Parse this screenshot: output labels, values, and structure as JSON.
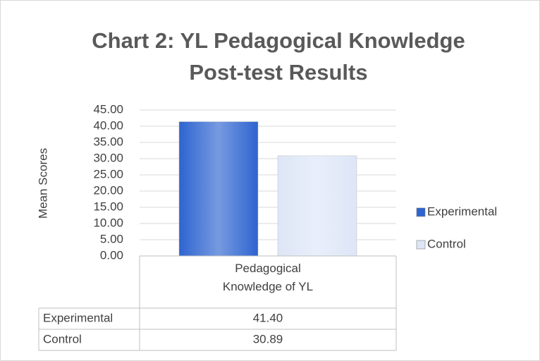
{
  "chart_data": {
    "type": "bar",
    "title": "Chart 2: YL Pedagogical Knowledge Post-test Results",
    "y_label": "Mean Scores",
    "categories": [
      "Pedagogical Knowledge of YL"
    ],
    "series": [
      {
        "name": "Experimental",
        "color": "#2e64d0",
        "values": [
          41.4
        ],
        "value_labels": [
          "41.40"
        ]
      },
      {
        "name": "Control",
        "color": "#dde6f7",
        "values": [
          30.89
        ],
        "value_labels": [
          "30.89"
        ]
      }
    ],
    "ylim": [
      0,
      45
    ],
    "yticks": [
      {
        "value": 0,
        "label": "0.00"
      },
      {
        "value": 5,
        "label": "5.00"
      },
      {
        "value": 10,
        "label": "10.00"
      },
      {
        "value": 15,
        "label": "15.00"
      },
      {
        "value": 20,
        "label": "20.00"
      },
      {
        "value": 25,
        "label": "25.00"
      },
      {
        "value": 30,
        "label": "30.00"
      },
      {
        "value": 35,
        "label": "35.00"
      },
      {
        "value": 40,
        "label": "40.00"
      },
      {
        "value": 45,
        "label": "45.00"
      }
    ],
    "grid": true,
    "legend": "right",
    "data_table": true
  }
}
